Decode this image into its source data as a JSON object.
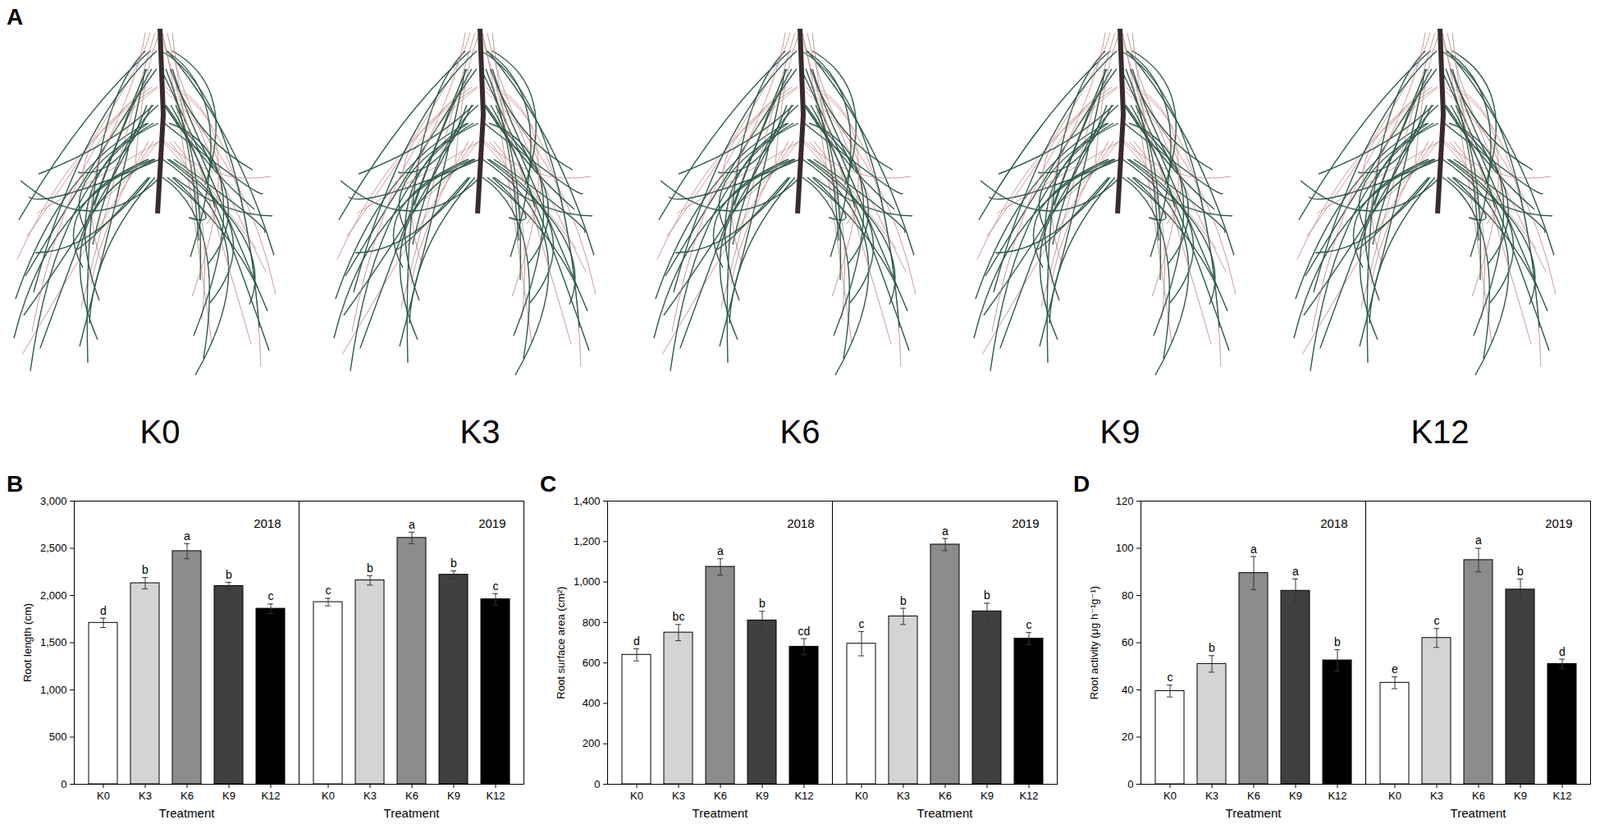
{
  "figure": {
    "panel_label": "A",
    "image_labels": [
      "K0",
      "K3",
      "K6",
      "K9",
      "K12"
    ]
  },
  "chart_data": [
    {
      "type": "bar",
      "panel_label": "B",
      "categories": [
        "K0",
        "K3",
        "K6",
        "K9",
        "K12"
      ],
      "colors": [
        "#ffffff",
        "#d4d4d4",
        "#8c8c8c",
        "#404040",
        "#000000"
      ],
      "ylabel": "Root length (cm)",
      "xlabel": "Treatment",
      "ylim": [
        0,
        3000
      ],
      "yticks": [
        0,
        500,
        1000,
        1500,
        2000,
        2500,
        3000
      ],
      "facets": [
        {
          "title": "2018",
          "values": [
            1710,
            2130,
            2470,
            2100,
            1860
          ],
          "errors": [
            50,
            60,
            80,
            40,
            50
          ],
          "annotations": [
            "d",
            "b",
            "a",
            "b",
            "c"
          ]
        },
        {
          "title": "2019",
          "values": [
            1930,
            2160,
            2610,
            2220,
            1960
          ],
          "errors": [
            40,
            50,
            60,
            40,
            60
          ],
          "annotations": [
            "c",
            "b",
            "a",
            "b",
            "c"
          ]
        }
      ]
    },
    {
      "type": "bar",
      "panel_label": "C",
      "categories": [
        "K0",
        "K3",
        "K6",
        "K9",
        "K12"
      ],
      "colors": [
        "#ffffff",
        "#d4d4d4",
        "#8c8c8c",
        "#404040",
        "#000000"
      ],
      "ylabel": "Root surface area (cm²)",
      "xlabel": "Treatment",
      "ylim": [
        0,
        1400
      ],
      "yticks": [
        0,
        200,
        400,
        600,
        800,
        1000,
        1200,
        1400
      ],
      "facets": [
        {
          "title": "2018",
          "values": [
            640,
            750,
            1075,
            810,
            680
          ],
          "errors": [
            30,
            40,
            40,
            45,
            40
          ],
          "annotations": [
            "d",
            "bc",
            "a",
            "b",
            "cd"
          ]
        },
        {
          "title": "2019",
          "values": [
            695,
            830,
            1185,
            855,
            720
          ],
          "errors": [
            60,
            40,
            30,
            40,
            30
          ],
          "annotations": [
            "c",
            "b",
            "a",
            "b",
            "c"
          ]
        }
      ]
    },
    {
      "type": "bar",
      "panel_label": "D",
      "categories": [
        "K0",
        "K3",
        "K6",
        "K9",
        "K12"
      ],
      "colors": [
        "#ffffff",
        "#d4d4d4",
        "#8c8c8c",
        "#404040",
        "#000000"
      ],
      "ylabel": "Root activity (μg h⁻¹g⁻¹)",
      "xlabel": "Treatment",
      "ylim": [
        0,
        120
      ],
      "yticks": [
        0,
        20,
        40,
        60,
        80,
        100,
        120
      ],
      "facets": [
        {
          "title": "2018",
          "values": [
            39.5,
            51,
            89.5,
            82,
            52.5
          ],
          "errors": [
            2.5,
            3.5,
            7,
            5,
            4.5
          ],
          "annotations": [
            "c",
            "b",
            "a",
            "a",
            "b"
          ]
        },
        {
          "title": "2019",
          "values": [
            43,
            62,
            95,
            82.5,
            51
          ],
          "errors": [
            2.5,
            4,
            5,
            4.5,
            2
          ],
          "annotations": [
            "e",
            "c",
            "a",
            "b",
            "d"
          ]
        }
      ]
    }
  ]
}
